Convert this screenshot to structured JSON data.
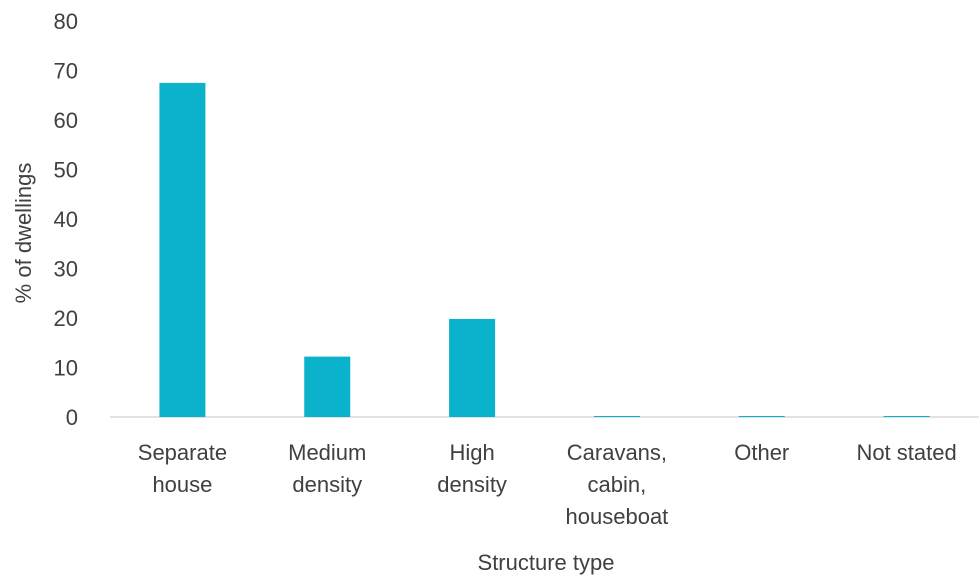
{
  "chart_data": {
    "type": "bar",
    "categories": [
      [
        "Separate",
        "house"
      ],
      [
        "Medium",
        "density"
      ],
      [
        "High",
        "density"
      ],
      [
        "Caravans,",
        "cabin,",
        "houseboat"
      ],
      [
        "Other"
      ],
      [
        "Not stated"
      ]
    ],
    "values": [
      67.5,
      12.2,
      19.8,
      0.2,
      0.2,
      0.2
    ],
    "xlabel": "Structure type",
    "ylabel": "% of dwellings",
    "ylim": [
      0,
      80
    ],
    "yticks": [
      "0",
      "10",
      "20",
      "30",
      "40",
      "50",
      "60",
      "70",
      "80"
    ],
    "bar_color": "#0BB2CC",
    "axis_color": "#D9D9D9",
    "text_color": "#404040",
    "grid": false,
    "legend": "none"
  }
}
